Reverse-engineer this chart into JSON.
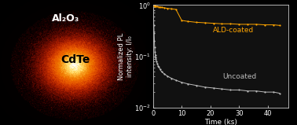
{
  "fig_width": 3.78,
  "fig_height": 1.59,
  "dpi": 100,
  "left_panel": {
    "label_al2o3": "Al₂O₃",
    "label_cdte": "CdTe",
    "label_color_al": "#FFFFFF",
    "label_color_cdte": "#000000",
    "label_fontsize_al": 9,
    "label_fontsize_cdte": 10
  },
  "right_panel": {
    "bg_color": "#111111",
    "tick_color": "#CCCCCC",
    "label_color": "#FFFFFF",
    "xlabel": "Time (ks)",
    "ylabel": "Normalized PL\nintensity: I/I₀",
    "xlim": [
      0,
      47
    ],
    "ylim_lo": 0.01,
    "ylim_hi": 1.0,
    "xticks": [
      0,
      10,
      20,
      30,
      40
    ],
    "ald_label": "ALD-coated",
    "ald_color": "#FFA500",
    "uncoated_label": "Uncoated",
    "uncoated_color": "#BBBBBB",
    "font_size_axis": 6,
    "font_size_label": 6.5,
    "ald_x": [
      0.0,
      0.2,
      0.4,
      0.6,
      0.8,
      1.0,
      1.5,
      2.0,
      2.5,
      3.0,
      4.0,
      5.0,
      6.5,
      8.0,
      10.0,
      12.0,
      15.0,
      18.0,
      21.0,
      24.0,
      27.0,
      30.0,
      33.0,
      36.0,
      39.0,
      42.0,
      44.0
    ],
    "ald_y": [
      1.0,
      0.98,
      0.97,
      0.96,
      0.95,
      0.94,
      0.93,
      0.92,
      0.91,
      0.9,
      0.88,
      0.86,
      0.84,
      0.82,
      0.5,
      0.48,
      0.46,
      0.45,
      0.44,
      0.43,
      0.43,
      0.42,
      0.42,
      0.42,
      0.41,
      0.41,
      0.4
    ],
    "uncoated_x": [
      0.0,
      0.1,
      0.2,
      0.3,
      0.4,
      0.5,
      0.6,
      0.7,
      0.8,
      0.9,
      1.0,
      1.2,
      1.5,
      1.8,
      2.0,
      2.5,
      3.0,
      4.0,
      5.0,
      6.5,
      8.0,
      10.0,
      12.0,
      15.0,
      18.0,
      21.0,
      24.0,
      27.0,
      30.0,
      33.0,
      36.0,
      39.0,
      42.0,
      44.0
    ],
    "uncoated_y": [
      1.0,
      0.8,
      0.6,
      0.4,
      0.28,
      0.2,
      0.15,
      0.12,
      0.105,
      0.095,
      0.088,
      0.08,
      0.072,
      0.065,
      0.062,
      0.055,
      0.05,
      0.045,
      0.041,
      0.037,
      0.034,
      0.031,
      0.029,
      0.027,
      0.025,
      0.024,
      0.023,
      0.022,
      0.022,
      0.021,
      0.021,
      0.02,
      0.02,
      0.019
    ]
  }
}
